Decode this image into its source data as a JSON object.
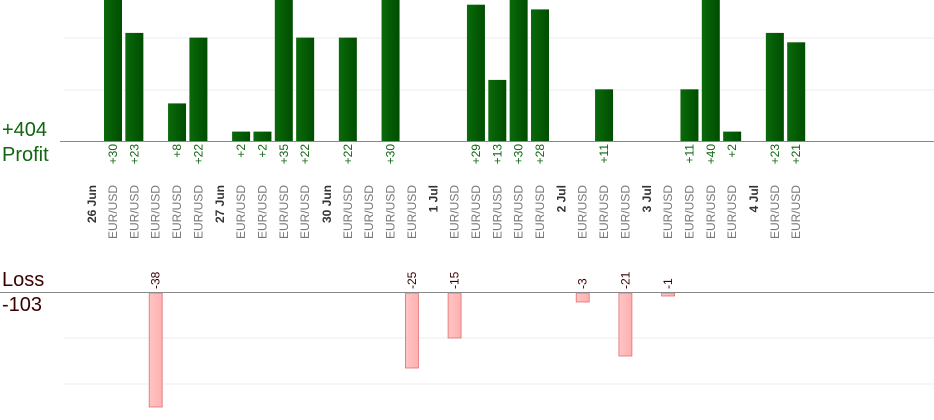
{
  "profit": {
    "label": "Profit",
    "total": "+404"
  },
  "loss": {
    "label": "Loss",
    "total": "-103"
  },
  "colors": {
    "profit_bar": "#0a6a0a",
    "profit_bar_dark": "#004d00",
    "profit_text": "#116611",
    "loss_bar": "#ffb0b0",
    "loss_border": "#e07070",
    "loss_text": "#3a0000",
    "grid": "#ececec",
    "axis": "#888888",
    "category": "#777777",
    "date": "#333333"
  },
  "chart_data": {
    "type": "bar",
    "categories": [
      {
        "date": "26 Jun",
        "label": "EUR/USD",
        "value": 30
      },
      {
        "label": "EUR/USD",
        "value": 23
      },
      {
        "label": "EUR/USD",
        "value": -38
      },
      {
        "label": "EUR/USD",
        "value": 8
      },
      {
        "label": "EUR/USD",
        "value": 22
      },
      {
        "label": "",
        "value": null
      },
      {
        "date": "27 Jun",
        "label": "EUR/USD",
        "value": 2
      },
      {
        "label": "EUR/USD",
        "value": 2
      },
      {
        "label": "EUR/USD",
        "value": 35
      },
      {
        "label": "EUR/USD",
        "value": 22
      },
      {
        "label": "",
        "value": null
      },
      {
        "date": "30 Jun",
        "label": "EUR/USD",
        "value": 22
      },
      {
        "label": "EUR/USD",
        "value": null
      },
      {
        "label": "EUR/USD",
        "value": 30
      },
      {
        "label": "EUR/USD",
        "value": -25
      },
      {
        "label": "",
        "value": null
      },
      {
        "date": "1 Jul",
        "label": "EUR/USD",
        "value": -15
      },
      {
        "label": "EUR/USD",
        "value": 29
      },
      {
        "label": "EUR/USD",
        "value": 13
      },
      {
        "label": "EUR/USD",
        "value": 30
      },
      {
        "label": "EUR/USD",
        "value": 28
      },
      {
        "label": "",
        "value": null
      },
      {
        "date": "2 Jul",
        "label": "EUR/USD",
        "value": -3
      },
      {
        "label": "EUR/USD",
        "value": 11
      },
      {
        "label": "EUR/USD",
        "value": -21
      },
      {
        "label": "",
        "value": null
      },
      {
        "date": "3 Jul",
        "label": "EUR/USD",
        "value": -1
      },
      {
        "label": "EUR/USD",
        "value": 11
      },
      {
        "label": "EUR/USD",
        "value": 40
      },
      {
        "label": "EUR/USD",
        "value": 2
      },
      {
        "label": "",
        "value": null
      },
      {
        "date": "4 Jul",
        "label": "EUR/USD",
        "value": 23
      },
      {
        "label": "EUR/USD",
        "value": 21
      }
    ],
    "profit_ylim": [
      0,
      30
    ],
    "loss_ylim": [
      -38,
      0
    ],
    "grid": true
  }
}
